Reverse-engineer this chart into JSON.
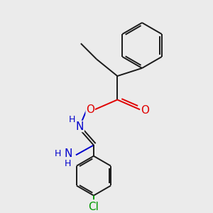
{
  "background_color": "#ebebeb",
  "bond_color": "#1a1a1a",
  "atom_colors": {
    "O": "#e00000",
    "N": "#0000cc",
    "Cl": "#009900",
    "C": "#1a1a1a"
  },
  "figsize": [
    3.0,
    3.0
  ],
  "dpi": 100,
  "xlim": [
    0,
    10
  ],
  "ylim": [
    0,
    10
  ]
}
